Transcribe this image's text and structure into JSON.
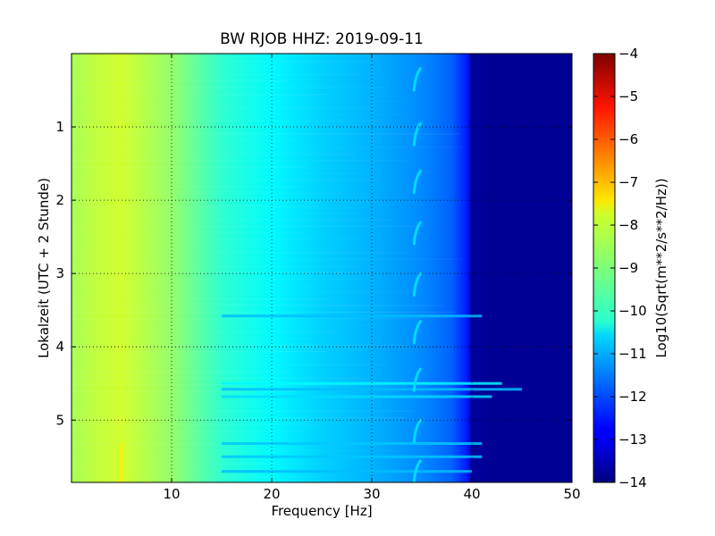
{
  "chart_data": {
    "type": "heatmap",
    "title": "BW RJOB HHZ: 2019-09-11",
    "xlabel": "Frequency [Hz]",
    "ylabel": "Lokalzeit (UTC + 2 Stunde)",
    "colorbar_label": "Log10(Sqrt(m**2/s**2/Hz))",
    "xlim": [
      0,
      50
    ],
    "ylim": [
      5.85,
      0
    ],
    "x_ticks": [
      10,
      20,
      30,
      40,
      50
    ],
    "x_tick_labels": [
      "10",
      "20",
      "30",
      "40",
      "50"
    ],
    "y_ticks": [
      1,
      2,
      3,
      4,
      5
    ],
    "y_tick_labels": [
      "1",
      "2",
      "3",
      "4",
      "5"
    ],
    "colorbar_range": [
      -14,
      -4
    ],
    "colorbar_ticks": [
      -4,
      -5,
      -6,
      -7,
      -8,
      -9,
      -10,
      -11,
      -12,
      -13,
      -14
    ],
    "colorbar_tick_labels": [
      "−4",
      "−5",
      "−6",
      "−7",
      "−8",
      "−9",
      "−10",
      "−11",
      "−12",
      "−13",
      "−14"
    ],
    "colormap": "jet",
    "grid": true,
    "psd_profile": {
      "frequency": [
        0,
        2,
        5,
        10,
        15,
        20,
        25,
        30,
        35,
        38,
        39.5,
        40,
        42,
        50
      ],
      "value": [
        -8.6,
        -8.4,
        -8.2,
        -8.8,
        -9.8,
        -10.3,
        -10.7,
        -11.0,
        -11.4,
        -11.8,
        -12.5,
        -13.7,
        -13.8,
        -13.8
      ]
    },
    "horizontal_bands": [
      {
        "time": 4.5,
        "f_max": 43,
        "value": -10.3
      },
      {
        "time": 4.58,
        "f_max": 45,
        "value": -10.9
      },
      {
        "time": 4.68,
        "f_max": 42,
        "value": -10.6
      },
      {
        "time": 3.58,
        "f_max": 41,
        "value": -10.9
      },
      {
        "time": 5.32,
        "f_max": 41,
        "value": -10.8
      },
      {
        "time": 5.5,
        "f_max": 41,
        "value": -10.8
      },
      {
        "time": 5.7,
        "f_max": 40,
        "value": -10.9
      }
    ],
    "periodic_signal": {
      "frequency": 34.5,
      "times": [
        0.35,
        1.1,
        1.75,
        2.45,
        3.15,
        3.8,
        4.45,
        5.15,
        5.7
      ],
      "value": -10.6
    },
    "low_freq_line": {
      "frequency": 5.0,
      "time_range": [
        5.3,
        5.85
      ],
      "value": -7.6
    }
  }
}
